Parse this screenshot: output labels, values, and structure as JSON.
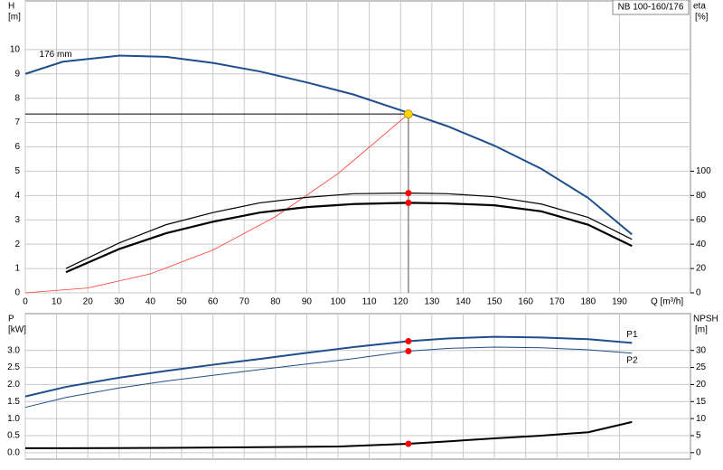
{
  "chart_data": [
    {
      "type": "line",
      "title": "NB 100-160/176",
      "ylabel": "H",
      "yunit": "[m]",
      "y2label": "eta",
      "y2unit": "[%]",
      "xlabel": "Q [m³/h]",
      "xlim": [
        0,
        212.7
      ],
      "xticks": [
        0,
        10,
        20,
        30,
        40,
        50,
        60,
        70,
        80,
        90,
        100,
        110,
        120,
        130,
        140,
        150,
        160,
        170,
        180,
        190
      ],
      "ylim": [
        0,
        12
      ],
      "yticks": [
        0,
        1,
        2,
        3,
        4,
        5,
        6,
        7,
        8,
        9,
        10
      ],
      "y2lim": [
        0,
        240
      ],
      "y2ticks": [
        0,
        20,
        40,
        60,
        80,
        100
      ],
      "grid": true,
      "series": [
        {
          "name": "176 mm",
          "color": "#1f4e8c",
          "x": [
            0,
            12,
            30,
            45,
            60,
            75,
            90,
            105,
            122.5,
            135,
            150,
            165,
            180,
            194
          ],
          "values": [
            9.0,
            9.5,
            9.75,
            9.7,
            9.45,
            9.1,
            8.65,
            8.15,
            7.4,
            6.85,
            6.05,
            5.1,
            3.9,
            2.4
          ]
        },
        {
          "color": "#ff3b30",
          "x": [
            0,
            20,
            40,
            60,
            80,
            100,
            122.5
          ],
          "values": [
            0,
            0.2,
            0.78,
            1.76,
            3.13,
            4.9,
            7.35
          ]
        },
        {
          "color": "#000000",
          "axis": "y2",
          "x": [
            13,
            30,
            45,
            60,
            75,
            90,
            105,
            122.5,
            135,
            150,
            165,
            180,
            194
          ],
          "values": [
            20,
            41,
            56,
            66,
            74,
            78.5,
            81.5,
            82,
            81.5,
            79,
            73,
            62,
            44
          ]
        },
        {
          "color": "#000000",
          "axis": "y2",
          "x": [
            13,
            30,
            45,
            60,
            75,
            90,
            105,
            122.5,
            135,
            150,
            165,
            180,
            194
          ],
          "values": [
            17,
            36,
            49,
            58.5,
            66,
            70.5,
            73,
            74,
            73.5,
            72,
            67,
            56,
            38.5
          ]
        }
      ],
      "markers": [
        {
          "x": 122.5,
          "y": 7.35,
          "color": "#ffd700",
          "guide": true
        },
        {
          "x": 122.5,
          "y": 82,
          "axis": "y2",
          "color": "#ff0000"
        },
        {
          "x": 122.5,
          "y": 74,
          "axis": "y2",
          "color": "#ff0000"
        }
      ]
    },
    {
      "type": "line",
      "ylabel": "P",
      "yunit": "[kW]",
      "y2label": "NPSH",
      "y2unit": "[m]",
      "xlim": [
        0,
        212.7
      ],
      "xticks": [
        0,
        10,
        20,
        30,
        40,
        50,
        60,
        70,
        80,
        90,
        100,
        110,
        120,
        130,
        140,
        150,
        160,
        170,
        180,
        190
      ],
      "ylim": [
        -0.19,
        4.08
      ],
      "yticks": [
        {
          "value": 0,
          "label": "0.0"
        },
        {
          "value": 0.5,
          "label": "0.5"
        },
        {
          "value": 1,
          "label": "1.0"
        },
        {
          "value": 1.5,
          "label": "1.5"
        },
        {
          "value": 2,
          "label": "2.0"
        },
        {
          "value": 2.5,
          "label": "2.5"
        },
        {
          "value": 3,
          "label": "3.0"
        }
      ],
      "y2lim": [
        -1.9,
        40.8
      ],
      "y2ticks": [
        0,
        5,
        10,
        15,
        20,
        25,
        30
      ],
      "grid": true,
      "series": [
        {
          "name": "P1",
          "color": "#1f4e8c",
          "x": [
            0,
            13,
            30,
            45,
            60,
            75,
            90,
            105,
            122.5,
            135,
            150,
            165,
            180,
            194
          ],
          "values": [
            1.65,
            1.93,
            2.2,
            2.4,
            2.58,
            2.75,
            2.93,
            3.1,
            3.27,
            3.35,
            3.4,
            3.38,
            3.33,
            3.22
          ]
        },
        {
          "name": "P2",
          "color": "#1f4e8c",
          "x": [
            0,
            13,
            30,
            45,
            60,
            75,
            90,
            105,
            122.5,
            135,
            150,
            165,
            180,
            194
          ],
          "values": [
            1.33,
            1.62,
            1.9,
            2.1,
            2.27,
            2.44,
            2.6,
            2.76,
            2.98,
            3.06,
            3.1,
            3.08,
            3.02,
            2.92
          ]
        },
        {
          "color": "#000000",
          "axis": "y2",
          "x": [
            0,
            13,
            45,
            75,
            100,
            122.5,
            135,
            150,
            165,
            180,
            194
          ],
          "values": [
            1.3,
            1.3,
            1.4,
            1.6,
            1.8,
            2.6,
            3.3,
            4.2,
            5.0,
            6.0,
            9.0
          ]
        }
      ],
      "markers": [
        {
          "x": 122.5,
          "y": 3.27,
          "color": "#ff0000"
        },
        {
          "x": 122.5,
          "y": 2.98,
          "color": "#ff0000"
        },
        {
          "x": 122.5,
          "y": 2.6,
          "axis": "y2",
          "color": "#ff0000"
        }
      ]
    }
  ]
}
